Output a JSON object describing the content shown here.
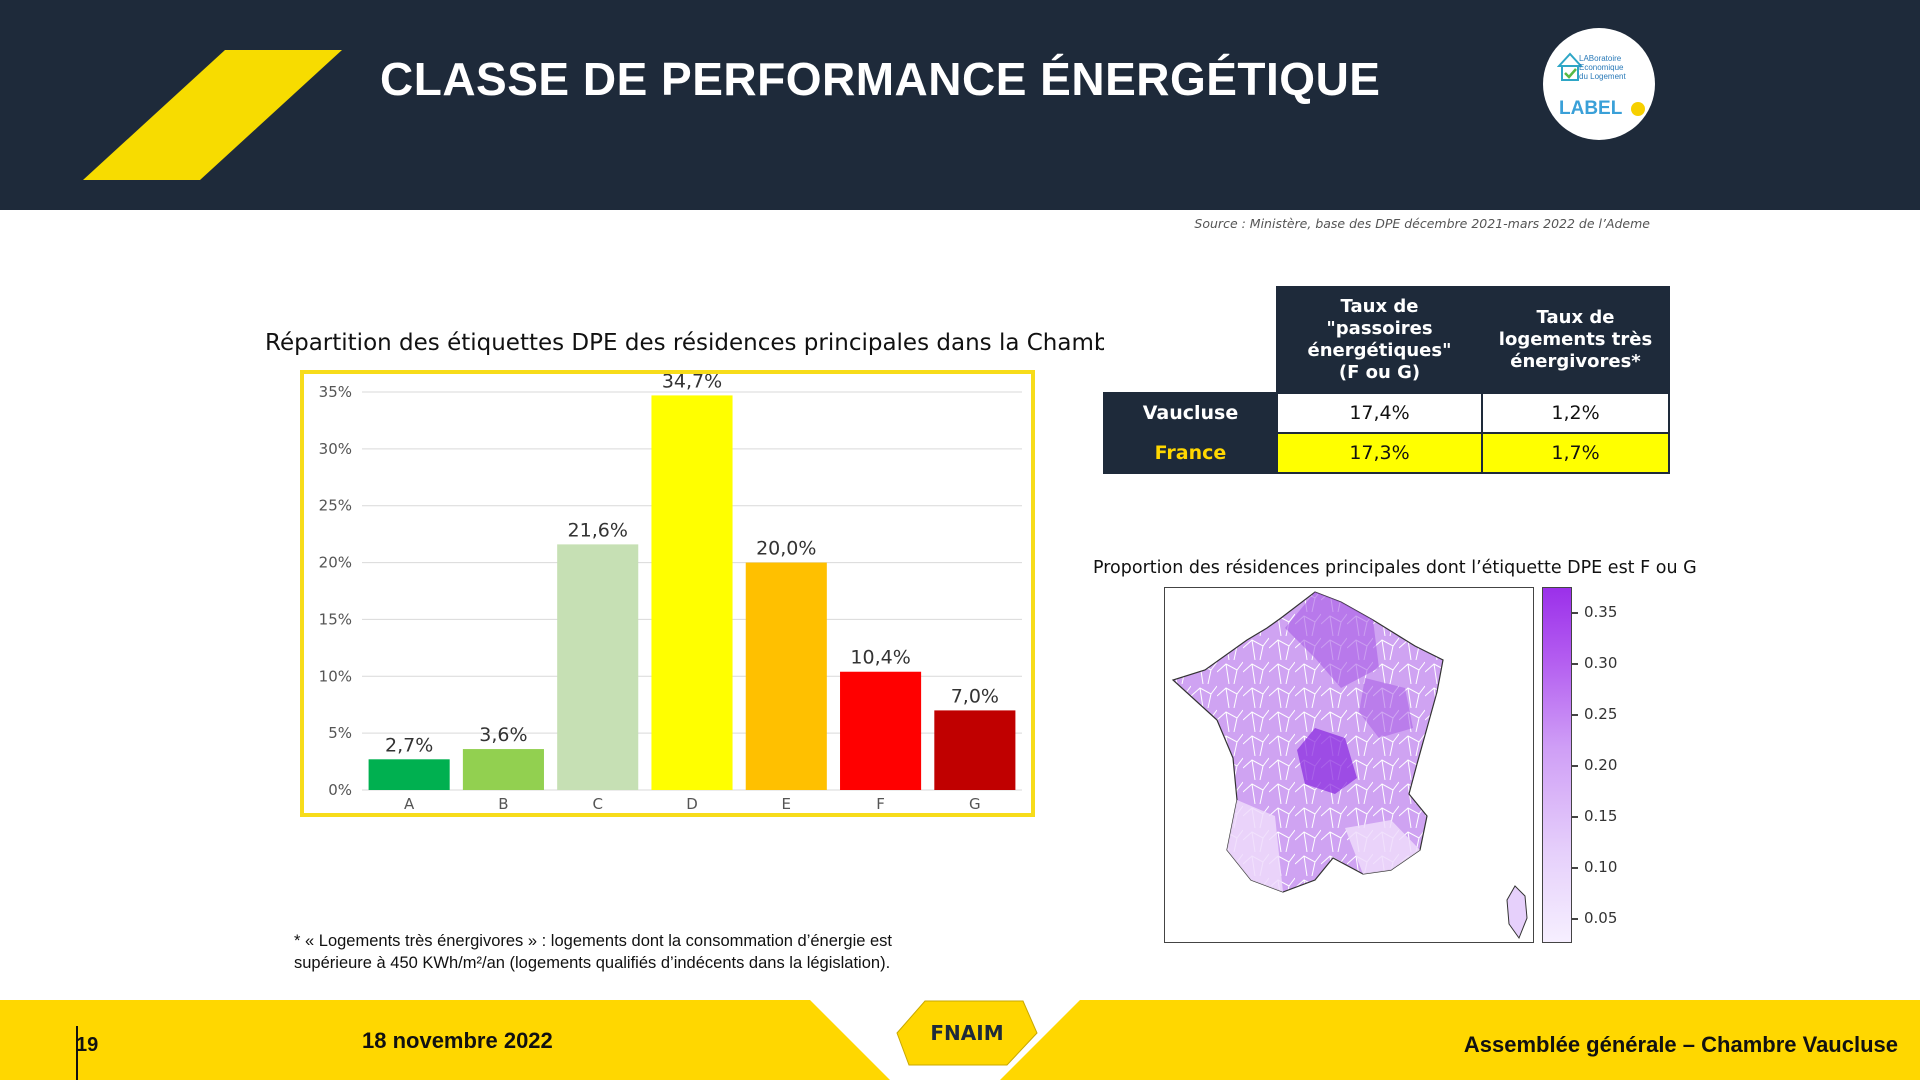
{
  "header": {
    "title": "CLASSE DE PERFORMANCE ÉNERGÉTIQUE",
    "logo_lines": [
      "LABoratoire",
      "Economique",
      "du Logement"
    ],
    "logo_text": "LABEL"
  },
  "source": "Source : Ministère, base des DPE décembre 2021-mars 2022 de l’Ademe",
  "chart_title": "Répartition des étiquettes DPE des résidences principales dans la Chambre",
  "chart_data": {
    "type": "bar",
    "categories": [
      "A",
      "B",
      "C",
      "D",
      "E",
      "F",
      "G"
    ],
    "values": [
      2.7,
      3.6,
      21.6,
      34.7,
      20.0,
      10.4,
      7.0
    ],
    "data_labels": [
      "2,7%",
      "3,6%",
      "21,6%",
      "34,7%",
      "20,0%",
      "10,4%",
      "7,0%"
    ],
    "colors": [
      "#00b050",
      "#92d050",
      "#c6e0b4",
      "#ffff00",
      "#ffc000",
      "#ff0000",
      "#c00000"
    ],
    "y_ticks": [
      "0%",
      "5%",
      "10%",
      "15%",
      "20%",
      "25%",
      "30%",
      "35%"
    ],
    "ylim": [
      0,
      35
    ],
    "grid": true,
    "title": "Répartition des étiquettes DPE des résidences principales dans la Chambre"
  },
  "table": {
    "headers": [
      "Taux de \"passoires énergétiques\" (F ou G)",
      "Taux de logements très énergivores*"
    ],
    "header_lines": [
      [
        "Taux de \"passoires",
        "énergétiques\"",
        "(F ou G)"
      ],
      [
        "Taux de",
        "logements très",
        "énergivores*"
      ]
    ],
    "rows": [
      {
        "label": "Vaucluse",
        "label_color": "#ffffff",
        "values": [
          "17,4%",
          "1,2%"
        ],
        "bg": "#ffffff"
      },
      {
        "label": "France",
        "label_color": "#ffd700",
        "values": [
          "17,3%",
          "1,7%"
        ],
        "bg": "#ffff00"
      }
    ]
  },
  "map": {
    "title": "Proportion des résidences principales dont l’étiquette DPE est F ou G",
    "colorbar_labels": [
      "0.35",
      "0.30",
      "0.25",
      "0.20",
      "0.15",
      "0.10",
      "0.05"
    ]
  },
  "footnote": {
    "line1": "* « Logements très énergivores » : logements dont la consommation d’énergie est",
    "line2": "supérieure à 450 KWh/m²/an (logements qualifiés d’indécents dans la législation)."
  },
  "footer": {
    "page_number": "19",
    "date": "18 novembre 2022",
    "brand": "FNAIM",
    "event": "Assemblée générale – Chambre Vaucluse"
  }
}
